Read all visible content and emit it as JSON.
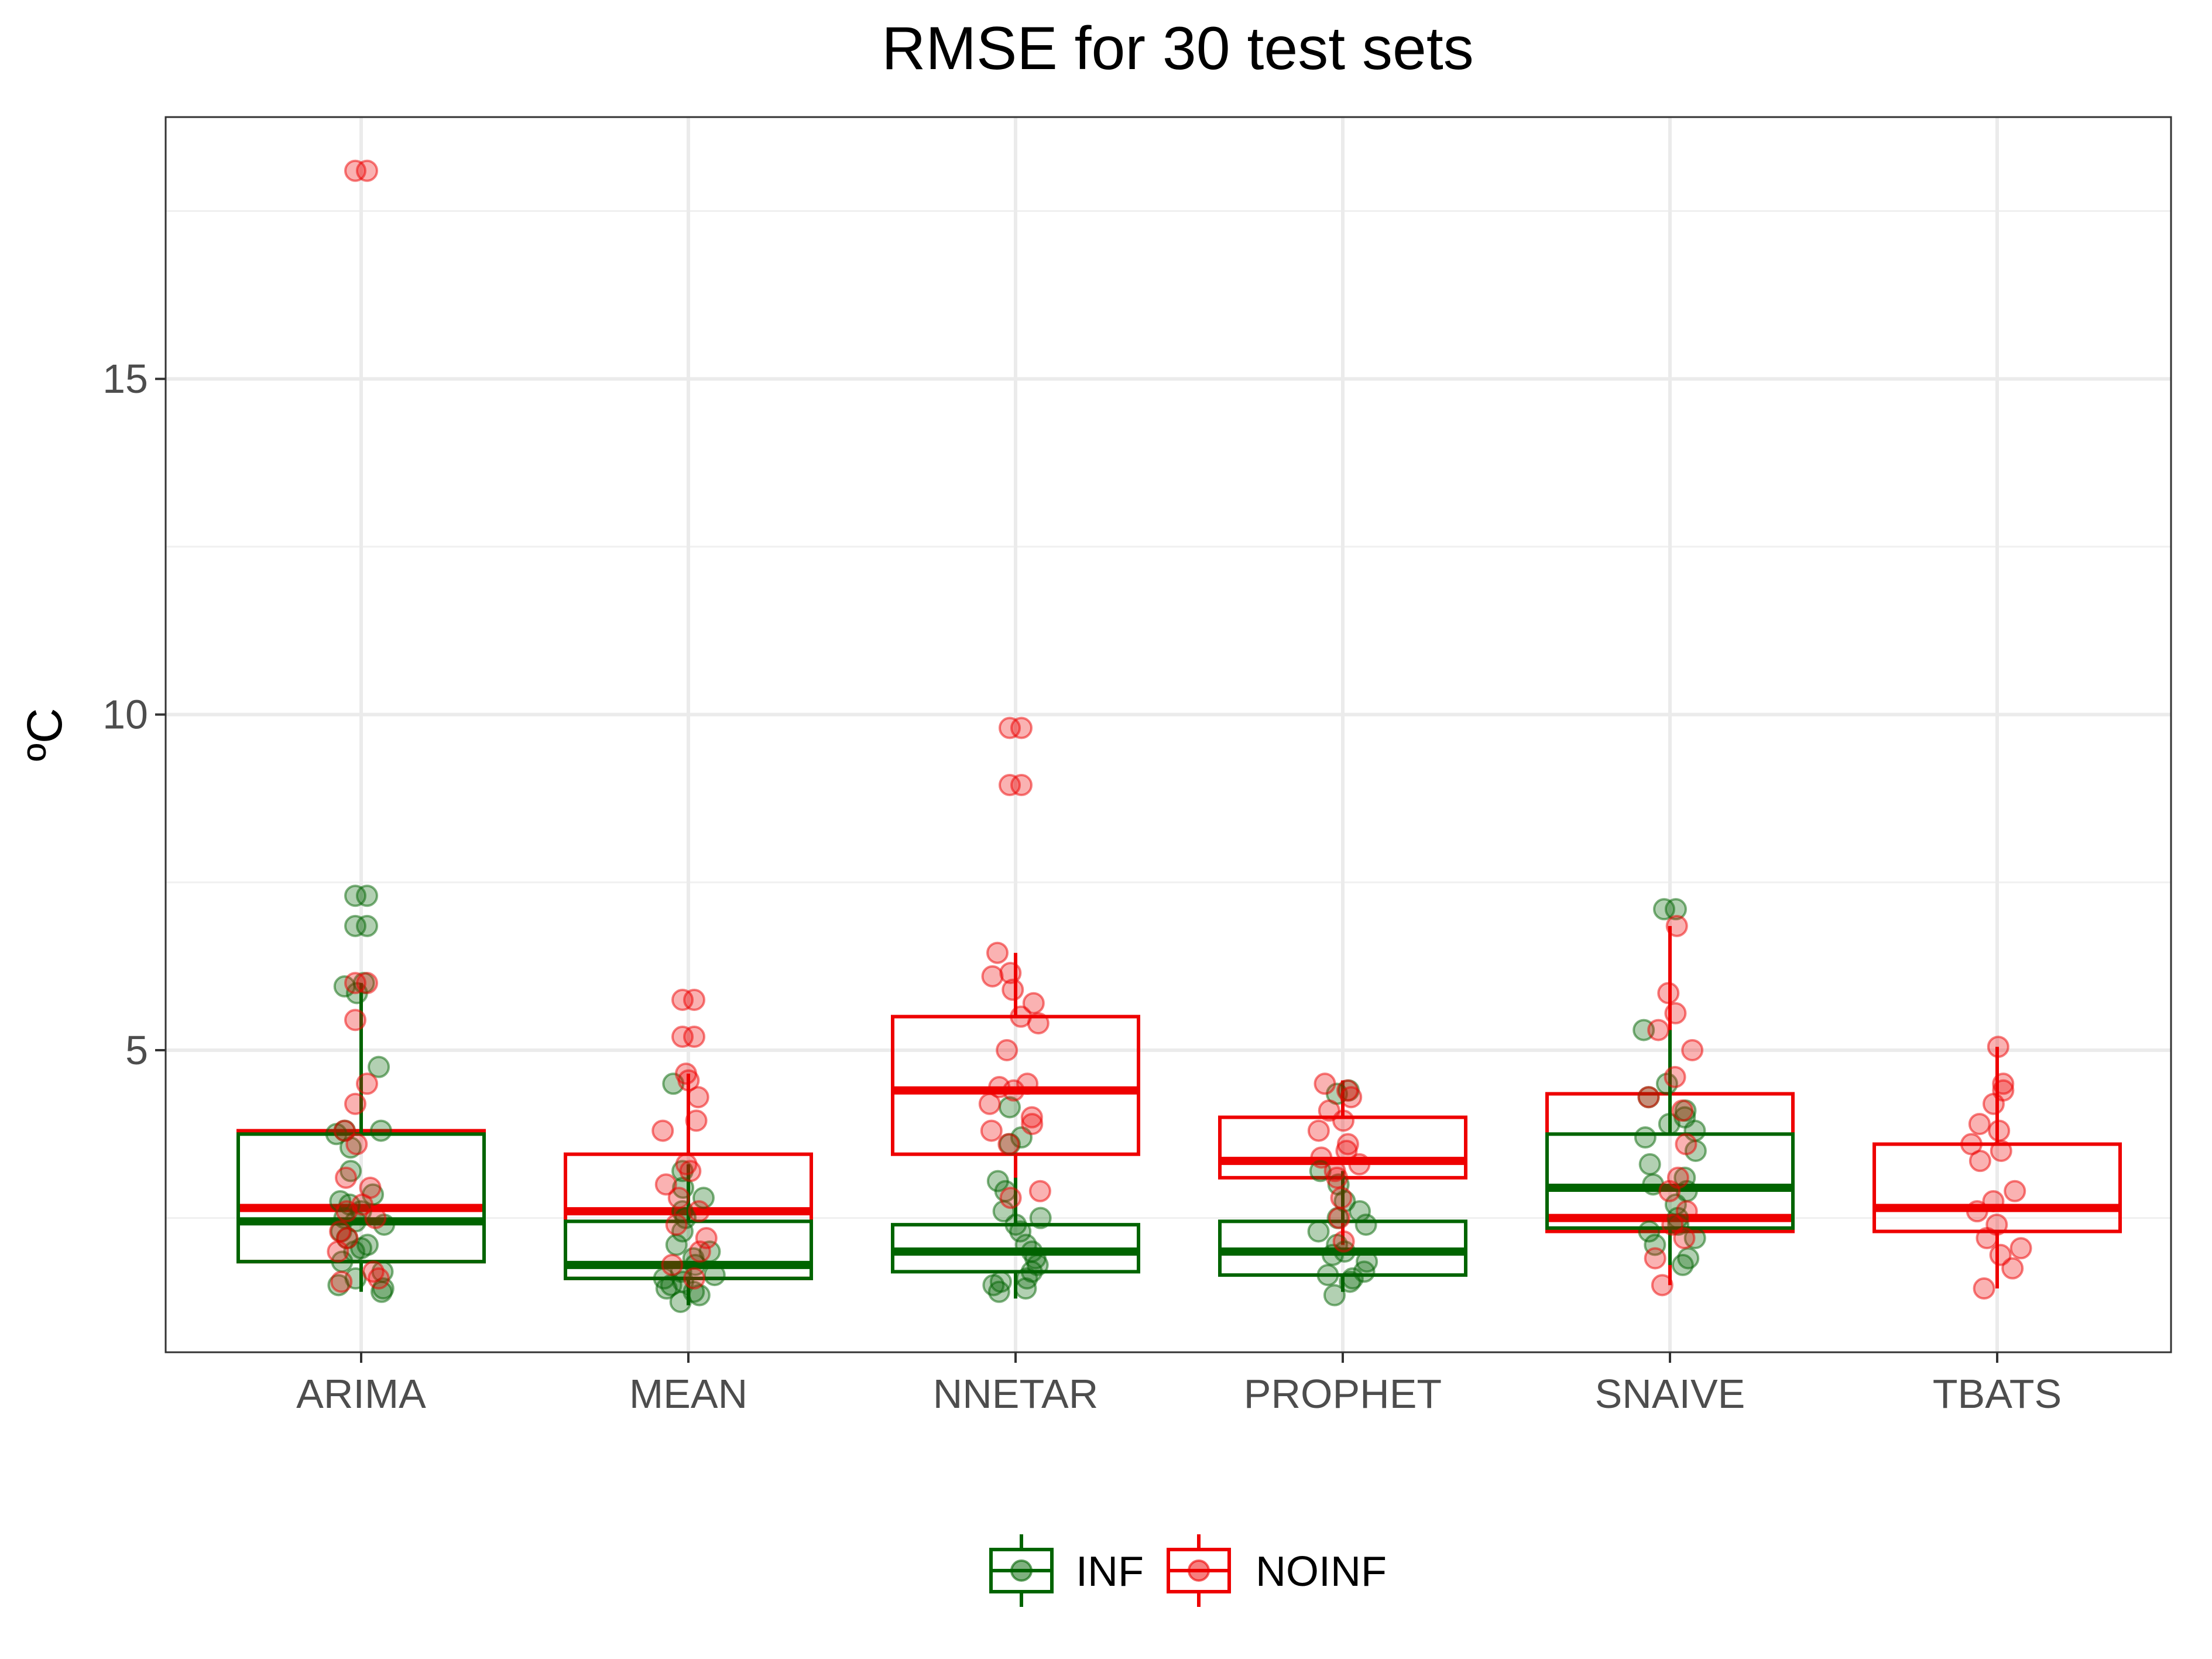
{
  "chart_data": {
    "type": "box",
    "title": "RMSE for 30 test sets",
    "xlabel": "",
    "ylabel": "ºC",
    "ylim": [
      0.5,
      18.9
    ],
    "yticks": [
      5,
      10,
      15
    ],
    "grid": true,
    "legend_position": "bottom",
    "categories": [
      "ARIMA",
      "MEAN",
      "NNETAR",
      "PROPHET",
      "SNAIVE",
      "TBATS"
    ],
    "series": [
      {
        "name": "INF",
        "color": "#006400",
        "boxes": [
          {
            "category": "ARIMA",
            "q1": 1.85,
            "median": 2.45,
            "q3": 3.75,
            "whisker_low": 1.4,
            "whisker_high": 6.0,
            "outliers": [
              7.3,
              7.3,
              6.85,
              6.85
            ],
            "points": [
              1.4,
              1.45,
              1.5,
              1.6,
              1.7,
              1.85,
              2.0,
              2.05,
              2.1,
              2.2,
              2.3,
              2.4,
              2.45,
              2.5,
              2.6,
              2.7,
              2.75,
              2.85,
              3.2,
              3.55,
              3.75,
              3.8,
              3.8,
              4.75,
              5.85,
              5.95,
              6.0
            ]
          },
          {
            "category": "MEAN",
            "q1": 1.6,
            "median": 1.8,
            "q3": 2.45,
            "whisker_low": 1.2,
            "whisker_high": 3.3,
            "outliers": [
              4.5
            ],
            "points": [
              1.25,
              1.35,
              1.4,
              1.45,
              1.5,
              1.55,
              1.6,
              1.65,
              1.7,
              1.8,
              1.9,
              2.0,
              2.1,
              2.3,
              2.5,
              2.6,
              2.8,
              2.95,
              3.2
            ]
          },
          {
            "category": "NNETAR",
            "q1": 1.7,
            "median": 2.0,
            "q3": 2.4,
            "whisker_low": 1.3,
            "whisker_high": 3.1,
            "outliers": [
              3.6,
              3.7,
              4.15
            ],
            "points": [
              1.4,
              1.45,
              1.5,
              1.55,
              1.6,
              1.7,
              1.8,
              1.9,
              2.0,
              2.1,
              2.3,
              2.4,
              2.5,
              2.6,
              2.9,
              3.05
            ]
          },
          {
            "category": "PROPHET",
            "q1": 1.65,
            "median": 2.0,
            "q3": 2.45,
            "whisker_low": 1.4,
            "whisker_high": 3.2,
            "outliers": [
              4.35,
              4.4
            ],
            "points": [
              1.35,
              1.55,
              1.6,
              1.65,
              1.7,
              1.85,
              1.95,
              2.0,
              2.1,
              2.3,
              2.4,
              2.5,
              2.6,
              2.75,
              3.0,
              3.2
            ]
          },
          {
            "category": "SNAIVE",
            "q1": 2.35,
            "median": 2.95,
            "q3": 3.75,
            "whisker_low": 1.8,
            "whisker_high": 5.3,
            "outliers": [
              7.1,
              7.1
            ],
            "points": [
              1.8,
              1.9,
              2.1,
              2.2,
              2.3,
              2.4,
              2.5,
              2.7,
              2.9,
              3.0,
              3.1,
              3.3,
              3.5,
              3.7,
              3.8,
              3.9,
              4.0,
              4.1,
              4.3,
              4.5,
              5.3
            ]
          }
        ]
      },
      {
        "name": "NOINF",
        "color": "#ee0000",
        "boxes": [
          {
            "category": "ARIMA",
            "q1": 1.85,
            "median": 2.65,
            "q3": 3.8,
            "whisker_low": 1.55,
            "whisker_high": 3.85,
            "outliers": [
              18.1,
              18.1,
              6.0,
              6.0,
              5.45,
              4.5,
              4.2
            ],
            "points": [
              1.55,
              1.6,
              1.7,
              2.0,
              2.2,
              2.3,
              2.5,
              2.6,
              2.7,
              2.95,
              3.1,
              3.6,
              3.8
            ]
          },
          {
            "category": "MEAN",
            "q1": 1.6,
            "median": 2.6,
            "q3": 3.45,
            "whisker_low": 1.4,
            "whisker_high": 4.65,
            "outliers": [
              5.75,
              5.75,
              5.2,
              5.2
            ],
            "points": [
              1.6,
              1.8,
              2.0,
              2.2,
              2.4,
              2.6,
              2.8,
              3.0,
              3.2,
              3.3,
              3.8,
              3.95,
              4.3,
              4.55,
              4.65
            ]
          },
          {
            "category": "NNETAR",
            "q1": 3.45,
            "median": 4.4,
            "q3": 5.5,
            "whisker_low": 2.8,
            "whisker_high": 6.45,
            "outliers": [
              9.8,
              9.8,
              8.95,
              8.95
            ],
            "points": [
              2.8,
              2.9,
              3.6,
              3.8,
              3.9,
              4.0,
              4.2,
              4.4,
              4.45,
              4.5,
              5.0,
              5.4,
              5.5,
              5.7,
              5.9,
              6.1,
              6.15,
              6.45
            ]
          },
          {
            "category": "PROPHET",
            "q1": 3.1,
            "median": 3.35,
            "q3": 4.0,
            "whisker_low": 2.1,
            "whisker_high": 4.55,
            "outliers": [],
            "points": [
              2.15,
              2.5,
              2.8,
              3.1,
              3.2,
              3.3,
              3.4,
              3.5,
              3.6,
              3.8,
              3.95,
              4.1,
              4.3,
              4.4,
              4.5
            ]
          },
          {
            "category": "SNAIVE",
            "q1": 2.3,
            "median": 2.5,
            "q3": 4.35,
            "whisker_low": 1.5,
            "whisker_high": 6.85,
            "outliers": [],
            "points": [
              1.5,
              1.9,
              2.2,
              2.4,
              2.6,
              2.9,
              3.1,
              3.6,
              4.1,
              4.3,
              4.6,
              5.0,
              5.3,
              5.55,
              5.85,
              6.85
            ]
          },
          {
            "category": "TBATS",
            "q1": 2.3,
            "median": 2.65,
            "q3": 3.6,
            "whisker_low": 1.45,
            "whisker_high": 5.05,
            "outliers": [],
            "points": [
              1.45,
              1.75,
              1.95,
              2.05,
              2.2,
              2.4,
              2.6,
              2.75,
              2.9,
              3.35,
              3.5,
              3.6,
              3.8,
              3.9,
              4.2,
              4.4,
              4.5,
              5.05
            ]
          }
        ]
      }
    ]
  }
}
